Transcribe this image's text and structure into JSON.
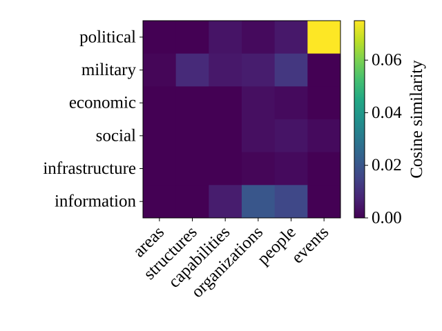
{
  "chart_data": {
    "type": "heatmap",
    "colormap": "viridis",
    "x_categories": [
      "areas",
      "structures",
      "capabilities",
      "organizations",
      "people",
      "events"
    ],
    "y_categories": [
      "political",
      "military",
      "economic",
      "social",
      "infrastructure",
      "information"
    ],
    "values": [
      [
        0.0,
        0.0,
        0.004,
        0.002,
        0.005,
        0.075
      ],
      [
        0.001,
        0.009,
        0.005,
        0.006,
        0.012,
        0.0
      ],
      [
        0.0,
        0.0,
        0.0,
        0.003,
        0.002,
        0.0
      ],
      [
        0.0,
        0.0,
        0.0,
        0.003,
        0.004,
        0.002
      ],
      [
        0.0,
        0.0,
        0.0,
        0.001,
        0.002,
        0.0
      ],
      [
        0.0,
        0.0,
        0.006,
        0.02,
        0.016,
        0.0
      ]
    ],
    "colorbar": {
      "label": "Cosine similarity",
      "range": [
        0.0,
        0.075
      ],
      "ticks": [
        0.0,
        0.02,
        0.04,
        0.06
      ],
      "tick_labels": [
        "0.00",
        "0.02",
        "0.04",
        "0.06"
      ]
    },
    "grid": false
  }
}
